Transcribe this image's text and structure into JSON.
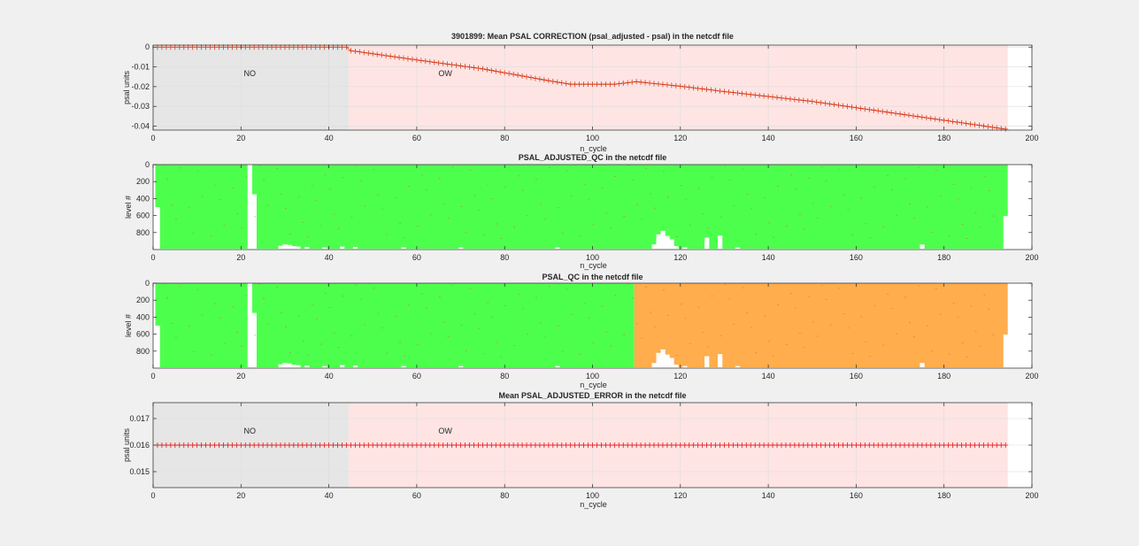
{
  "figure": {
    "background": "#f0f0f0"
  },
  "chart_data": [
    {
      "type": "line",
      "title": "3901899: Mean PSAL CORRECTION (psal_adjusted - psal) in the netcdf file",
      "xlabel": "n_cycle",
      "ylabel": "psal units",
      "xlim": [
        0,
        200
      ],
      "ylim": [
        -0.042,
        0.001
      ],
      "xticks": [
        0,
        20,
        40,
        60,
        80,
        100,
        120,
        140,
        160,
        180,
        200
      ],
      "yticks": [
        -0.04,
        -0.03,
        -0.02,
        -0.01,
        0
      ],
      "ytick_labels": [
        "-0.04",
        "-0.03",
        "-0.02",
        "-0.01",
        "0"
      ],
      "grid": true,
      "regions": [
        {
          "label": "NO",
          "x_range": [
            0,
            44.5
          ],
          "color": "#e6e6e6"
        },
        {
          "label": "OW",
          "x_range": [
            44.5,
            194.5
          ],
          "color": "#ffe4e4"
        }
      ],
      "series": [
        {
          "color": "#d43d1a",
          "marker": "+",
          "x_range": [
            1,
            194
          ],
          "profile_x": [
            1,
            44,
            45,
            60,
            75,
            90,
            95,
            105,
            110,
            120,
            130,
            150,
            194
          ],
          "profile_y": [
            0,
            0,
            -0.0018,
            -0.0065,
            -0.011,
            -0.017,
            -0.0188,
            -0.0188,
            -0.0175,
            -0.0198,
            -0.0225,
            -0.0275,
            -0.0415
          ]
        }
      ]
    },
    {
      "type": "heatmap",
      "title": "PSAL_ADJUSTED_QC  in the netcdf file",
      "xlabel": "n_cycle",
      "ylabel": "level #",
      "xlim": [
        0,
        200
      ],
      "ylim": [
        0,
        1000
      ],
      "y_reversed": true,
      "xticks": [
        0,
        20,
        40,
        60,
        80,
        100,
        120,
        140,
        160,
        180,
        200
      ],
      "yticks": [
        0,
        200,
        400,
        600,
        800
      ],
      "colors": {
        "qc1": "#4dff4d",
        "qc4": "#ffad4d",
        "missing": "#ffffff"
      },
      "qc_blocks": [
        {
          "x_range": [
            0.5,
            194.5
          ],
          "qc": "qc1"
        }
      ],
      "missing_profile": {
        "default_max_level": 990,
        "per_cycle": {
          "1": 500,
          "22": 0,
          "23": 350,
          "29": 955,
          "30": 940,
          "31": 945,
          "32": 960,
          "33": 965,
          "35": 970,
          "39": 975,
          "43": 965,
          "46": 970,
          "57": 975,
          "70": 975,
          "92": 975,
          "114": 940,
          "115": 820,
          "116": 780,
          "117": 840,
          "118": 880,
          "119": 960,
          "121": 975,
          "126": 860,
          "129": 835,
          "133": 975,
          "175": 940,
          "194": 605
        }
      }
    },
    {
      "type": "heatmap",
      "title": "PSAL_QC  in the netcdf file",
      "xlabel": "n_cycle",
      "ylabel": "level #",
      "xlim": [
        0,
        200
      ],
      "ylim": [
        0,
        1000
      ],
      "y_reversed": true,
      "xticks": [
        0,
        20,
        40,
        60,
        80,
        100,
        120,
        140,
        160,
        180,
        200
      ],
      "yticks": [
        0,
        200,
        400,
        600,
        800
      ],
      "colors": {
        "qc1": "#4dff4d",
        "qc4": "#ffad4d",
        "missing": "#ffffff"
      },
      "qc_blocks": [
        {
          "x_range": [
            0.5,
            109.5
          ],
          "qc": "qc1"
        },
        {
          "x_range": [
            109.5,
            194.5
          ],
          "qc": "qc4"
        }
      ],
      "missing_profile": {
        "default_max_level": 990,
        "per_cycle": {
          "1": 500,
          "22": 0,
          "23": 350,
          "29": 955,
          "30": 940,
          "31": 945,
          "32": 960,
          "33": 965,
          "35": 970,
          "39": 975,
          "43": 965,
          "46": 970,
          "57": 975,
          "70": 975,
          "92": 975,
          "114": 940,
          "115": 820,
          "116": 780,
          "117": 840,
          "118": 880,
          "119": 960,
          "121": 975,
          "126": 860,
          "129": 835,
          "133": 975,
          "175": 940,
          "194": 605
        }
      }
    },
    {
      "type": "line",
      "title": "Mean PSAL_ADJUSTED_ERROR  in the netcdf file",
      "xlabel": "n_cycle",
      "ylabel": "psal units",
      "xlim": [
        0,
        200
      ],
      "ylim": [
        0.0144,
        0.0176
      ],
      "xticks": [
        0,
        20,
        40,
        60,
        80,
        100,
        120,
        140,
        160,
        180,
        200
      ],
      "yticks": [
        0.015,
        0.016,
        0.017
      ],
      "ytick_labels": [
        "0.015",
        "0.016",
        "0.017"
      ],
      "grid": true,
      "regions": [
        {
          "label": "NO",
          "x_range": [
            0,
            44.5
          ],
          "color": "#e6e6e6"
        },
        {
          "label": "OW",
          "x_range": [
            44.5,
            194.5
          ],
          "color": "#ffe4e4"
        }
      ],
      "series": [
        {
          "color": "#e01b1b",
          "marker": "+",
          "x_range": [
            1,
            194
          ],
          "profile_x": [
            1,
            194
          ],
          "profile_y": [
            0.016,
            0.016
          ]
        }
      ]
    }
  ]
}
